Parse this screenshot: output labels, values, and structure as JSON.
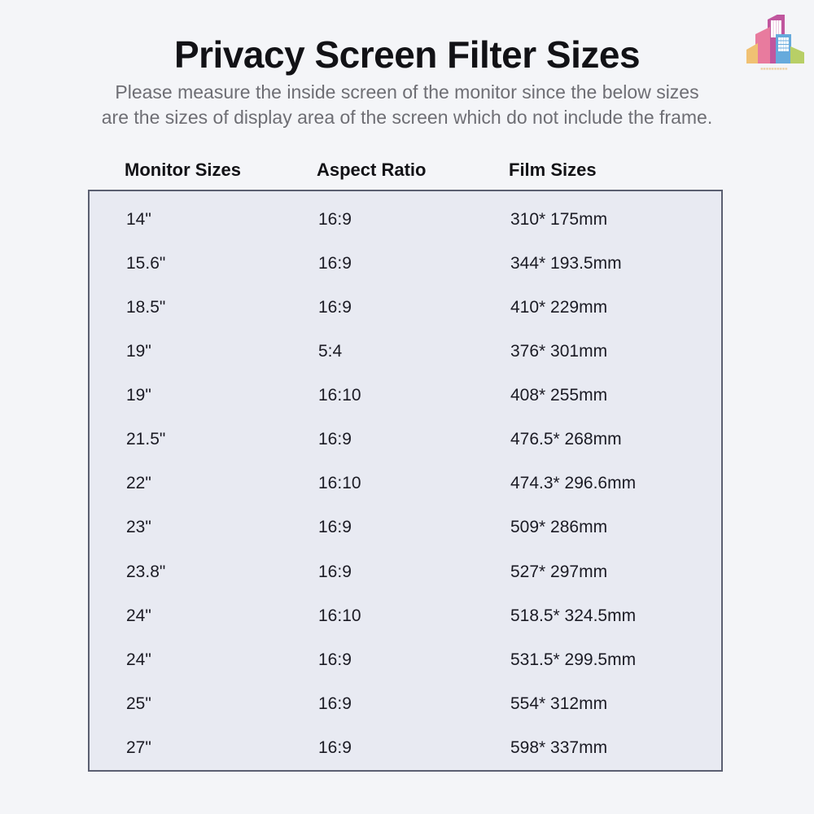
{
  "page": {
    "title": "Privacy Screen Filter Sizes",
    "subtitle_line1": "Please measure the inside screen of the monitor since the below sizes",
    "subtitle_line2": "are the sizes of display area of the screen which do not include the frame."
  },
  "logo": {
    "description": "colorful buildings cityscape logo",
    "brand_text": "▪▪▪▪▪▪▪▪▪▪",
    "colors": {
      "pink": "#e87b9e",
      "magenta": "#c0569e",
      "blue": "#66aadc",
      "yellow": "#f0c173",
      "green": "#b8cf66",
      "text": "#e9bd76"
    }
  },
  "table": {
    "headers": [
      "Monitor Sizes",
      "Aspect Ratio",
      "Film Sizes"
    ],
    "rows": [
      {
        "monitor": "14\"",
        "aspect": "16:9",
        "film": "310* 175mm"
      },
      {
        "monitor": "15.6\"",
        "aspect": "16:9",
        "film": "344* 193.5mm"
      },
      {
        "monitor": "18.5\"",
        "aspect": "16:9",
        "film": "410* 229mm"
      },
      {
        "monitor": "19\"",
        "aspect": "5:4",
        "film": "376* 301mm"
      },
      {
        "monitor": "19\"",
        "aspect": "16:10",
        "film": "408* 255mm"
      },
      {
        "monitor": "21.5\"",
        "aspect": "16:9",
        "film": "476.5* 268mm"
      },
      {
        "monitor": "22\"",
        "aspect": "16:10",
        "film": "474.3* 296.6mm"
      },
      {
        "monitor": "23\"",
        "aspect": "16:9",
        "film": "509* 286mm"
      },
      {
        "monitor": "23.8\"",
        "aspect": "16:9",
        "film": "527* 297mm"
      },
      {
        "monitor": "24\"",
        "aspect": "16:10",
        "film": "518.5* 324.5mm"
      },
      {
        "monitor": "24\"",
        "aspect": "16:9",
        "film": "531.5* 299.5mm"
      },
      {
        "monitor": "25\"",
        "aspect": "16:9",
        "film": "554* 312mm"
      },
      {
        "monitor": "27\"",
        "aspect": "16:9",
        "film": "598* 337mm"
      }
    ]
  },
  "colors": {
    "page_bg": "#f4f5f8",
    "table_bg": "#e8eaf2",
    "table_border": "#5b5f71",
    "title_text": "#121216",
    "subtitle_text": "#6e6e74",
    "cell_text": "#1b1b24"
  }
}
